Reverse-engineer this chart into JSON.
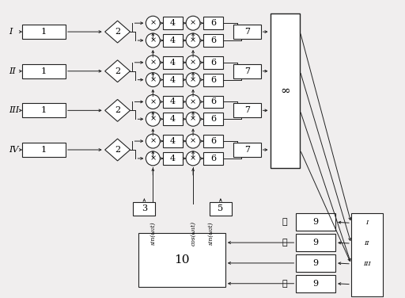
{
  "figsize": [
    5.12,
    3.76
  ],
  "dpi": 100,
  "inputs": [
    "I",
    "II",
    "III",
    "IV"
  ],
  "block1_label": "1",
  "block2_label": "2",
  "mult_label": "×",
  "block4_label": "4",
  "block6_label": "6",
  "block7_label": "7",
  "block8_label": "∞",
  "block9_label": "9",
  "block10_label": "10",
  "block3_label": "3",
  "block5_label": "5",
  "sin1_label": "sin(ω₁t)",
  "cos_label": "cos(ω₁t)",
  "sin2_label": "sin(ω₂t)",
  "wu": "五",
  "liu": "六",
  "qi": "七",
  "roman": [
    "I",
    "II",
    "III"
  ],
  "lc": "#222222",
  "fc": "white",
  "bg": "#f0eeee"
}
